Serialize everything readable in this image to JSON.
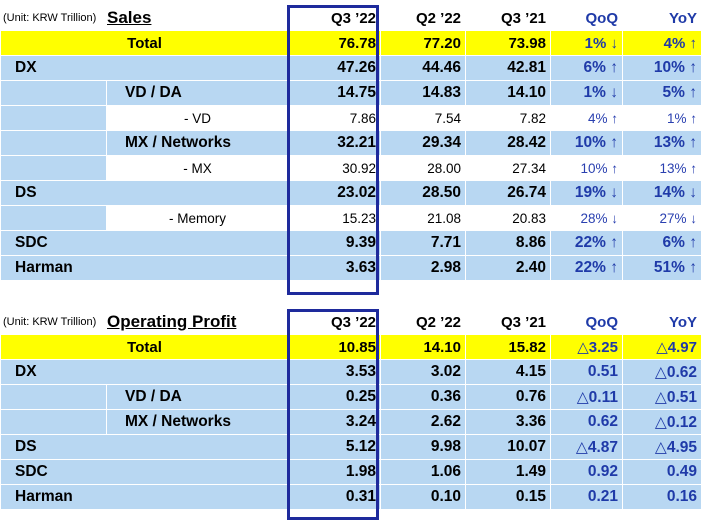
{
  "sales": {
    "unit": "(Unit: KRW Trillion)",
    "title": "Sales",
    "columns": [
      "Q3 ’22",
      "Q2 ’22",
      "Q3 ’21",
      "QoQ",
      "YoY"
    ],
    "rows": [
      {
        "type": "total",
        "label": "Total",
        "values": [
          "76.78",
          "77.20",
          "73.98",
          "1% ↓",
          "4% ↑"
        ]
      },
      {
        "type": "main",
        "label": "DX",
        "values": [
          "47.26",
          "44.46",
          "42.81",
          "6% ↑",
          "10% ↑"
        ]
      },
      {
        "type": "sub",
        "label": "VD / DA",
        "values": [
          "14.75",
          "14.83",
          "14.10",
          "1% ↓",
          "5% ↑"
        ]
      },
      {
        "type": "subsub",
        "label": "- VD",
        "values": [
          "7.86",
          "7.54",
          "7.82",
          "4% ↑",
          "1% ↑"
        ]
      },
      {
        "type": "sub",
        "label": "MX / Networks",
        "values": [
          "32.21",
          "29.34",
          "28.42",
          "10% ↑",
          "13% ↑"
        ]
      },
      {
        "type": "subsub",
        "label": "- MX",
        "values": [
          "30.92",
          "28.00",
          "27.34",
          "10% ↑",
          "13% ↑"
        ]
      },
      {
        "type": "main",
        "label": "DS",
        "values": [
          "23.02",
          "28.50",
          "26.74",
          "19% ↓",
          "14% ↓"
        ]
      },
      {
        "type": "subsub",
        "label": "- Memory",
        "values": [
          "15.23",
          "21.08",
          "20.83",
          "28% ↓",
          "27% ↓"
        ]
      },
      {
        "type": "main",
        "label": "SDC",
        "values": [
          "9.39",
          "7.71",
          "8.86",
          "22% ↑",
          "6% ↑"
        ]
      },
      {
        "type": "main",
        "label": "Harman",
        "values": [
          "3.63",
          "2.98",
          "2.40",
          "22% ↑",
          "51% ↑"
        ]
      }
    ]
  },
  "op": {
    "unit": "(Unit: KRW Trillion)",
    "title": "Operating Profit",
    "columns": [
      "Q3 ’22",
      "Q2 ’22",
      "Q3 ’21",
      "QoQ",
      "YoY"
    ],
    "rows": [
      {
        "type": "total",
        "label": "Total",
        "values": [
          "10.85",
          "14.10",
          "15.82",
          "△3.25",
          "△4.97"
        ]
      },
      {
        "type": "main",
        "label": "DX",
        "values": [
          "3.53",
          "3.02",
          "4.15",
          "0.51",
          "△0.62"
        ]
      },
      {
        "type": "sub",
        "label": "VD / DA",
        "values": [
          "0.25",
          "0.36",
          "0.76",
          "△0.11",
          "△0.51"
        ]
      },
      {
        "type": "sub",
        "label": "MX / Networks",
        "values": [
          "3.24",
          "2.62",
          "3.36",
          "0.62",
          "△0.12"
        ]
      },
      {
        "type": "main",
        "label": "DS",
        "values": [
          "5.12",
          "9.98",
          "10.07",
          "△4.87",
          "△4.95"
        ]
      },
      {
        "type": "main",
        "label": "SDC",
        "values": [
          "1.98",
          "1.06",
          "1.49",
          "0.92",
          "0.49"
        ]
      },
      {
        "type": "main",
        "label": "Harman",
        "values": [
          "0.31",
          "0.10",
          "0.15",
          "0.21",
          "0.16"
        ]
      }
    ]
  }
}
